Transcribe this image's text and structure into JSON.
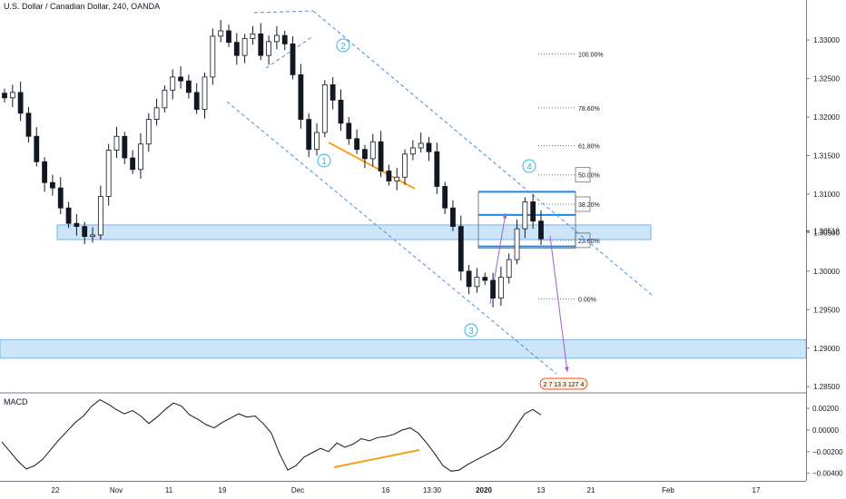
{
  "header": {
    "title": "U.S. Dollar / Canadian Dollar, 240, OANDA"
  },
  "macd": {
    "label": "MACD"
  },
  "colors": {
    "candle": "#131722",
    "trend": "#4a8fe0",
    "zone_fill": "#bcdcf7",
    "zone_border": "#79b4ec",
    "wave_label": "#32b4df",
    "orange": "#f7a21b",
    "purple": "#a05ed2",
    "fib_line": "#1e88e5"
  },
  "chart_data": [
    {
      "type": "line",
      "title": "U.S. Dollar / Canadian Dollar, 240, OANDA",
      "y_axis": {
        "ticks": [
          1.285,
          1.29,
          1.295,
          1.3,
          1.305,
          1.31,
          1.315,
          1.32,
          1.325,
          1.33
        ],
        "tick_labels": [
          "1.28500",
          "1.29000",
          "1.29500",
          "1.30000",
          "1.30500",
          "1.31000",
          "1.31500",
          "1.32000",
          "1.32500",
          "1.33000"
        ],
        "current_price": "1.30518",
        "ylim": [
          1.2842,
          1.3352
        ]
      },
      "x_axis": {
        "tick_labels": [
          "22",
          "Nov",
          "11",
          "19",
          "Dec",
          "16",
          "13:30",
          "2020",
          "13",
          "21",
          "Feb",
          "17"
        ]
      },
      "series": [
        {
          "values": [
            1.3225,
            1.3232,
            1.3205,
            1.3175,
            1.3142,
            1.3115,
            1.3108,
            1.3082,
            1.3062,
            1.3058,
            1.3045,
            1.3047,
            1.3097,
            1.3157,
            1.3175,
            1.3147,
            1.3132,
            1.3165,
            1.3197,
            1.3212,
            1.3235,
            1.3252,
            1.3247,
            1.3232,
            1.321,
            1.3252,
            1.3305,
            1.3312,
            1.3297,
            1.328,
            1.3302,
            1.3308,
            1.328,
            1.3298,
            1.3306,
            1.3295,
            1.3255,
            1.3197,
            1.3158,
            1.318,
            1.3242,
            1.3222,
            1.3192,
            1.3172,
            1.3158,
            1.3146,
            1.3168,
            1.313,
            1.3117,
            1.3122,
            1.3152,
            1.316,
            1.3166,
            1.3155,
            1.311,
            1.3082,
            1.3058,
            1.3,
            1.298,
            1.2992,
            1.2988,
            1.2965,
            1.2992,
            1.3015,
            1.3055,
            1.309,
            1.3065,
            1.3042
          ]
        }
      ],
      "annotations": {
        "fib_levels": [
          {
            "label": "100.00%",
            "price": 1.3282
          },
          {
            "label": "78.60%",
            "price": 1.3212
          },
          {
            "label": "61.80%",
            "price": 1.3163
          },
          {
            "label": "50.00%",
            "price": 1.3125
          },
          {
            "label": "38.20%",
            "price": 1.3087
          },
          {
            "label": "23.60%",
            "price": 1.304
          },
          {
            "label": "0.00%",
            "price": 1.2964
          }
        ],
        "wave_labels": [
          "1",
          "2",
          "3",
          "4"
        ],
        "zones": [
          {
            "low": 1.3041,
            "high": 1.306
          },
          {
            "low": 1.2887,
            "high": 1.2911
          }
        ],
        "event_badge": "2 7 13 3 127 4"
      }
    },
    {
      "type": "line",
      "title": "MACD",
      "y_axis": {
        "ticks": [
          0.002,
          0.0,
          -0.002,
          -0.004
        ],
        "tick_labels": [
          "0.00200",
          "0.00000",
          "−0.00200",
          "−0.00400"
        ],
        "ylim": [
          -0.0047,
          0.0031
        ]
      },
      "series": [
        {
          "values": [
            -0.0011,
            -0.002,
            -0.0029,
            -0.0036,
            -0.0033,
            -0.0027,
            -0.0018,
            -0.0009,
            -0.0001,
            0.0007,
            0.0013,
            0.0022,
            0.0028,
            0.0024,
            0.0019,
            0.0015,
            0.0018,
            0.0013,
            0.0006,
            0.0012,
            0.0019,
            0.0025,
            0.0022,
            0.0014,
            0.001,
            0.0005,
            0.0002,
            0.0007,
            0.0011,
            0.0015,
            0.0012,
            0.0013,
            0.0006,
            -0.0003,
            -0.0022,
            -0.0037,
            -0.0033,
            -0.0025,
            -0.0021,
            -0.0017,
            -0.002,
            -0.0012,
            -0.0016,
            -0.0013,
            -0.0008,
            -0.001,
            -0.0007,
            -0.0006,
            -0.0004,
            0.0,
            0.0002,
            -0.0003,
            -0.0012,
            -0.0022,
            -0.0033,
            -0.0038,
            -0.0037,
            -0.0032,
            -0.0028,
            -0.0024,
            -0.002,
            -0.0016,
            -0.0008,
            0.0004,
            0.0015,
            0.0019,
            0.0014
          ]
        }
      ]
    }
  ]
}
